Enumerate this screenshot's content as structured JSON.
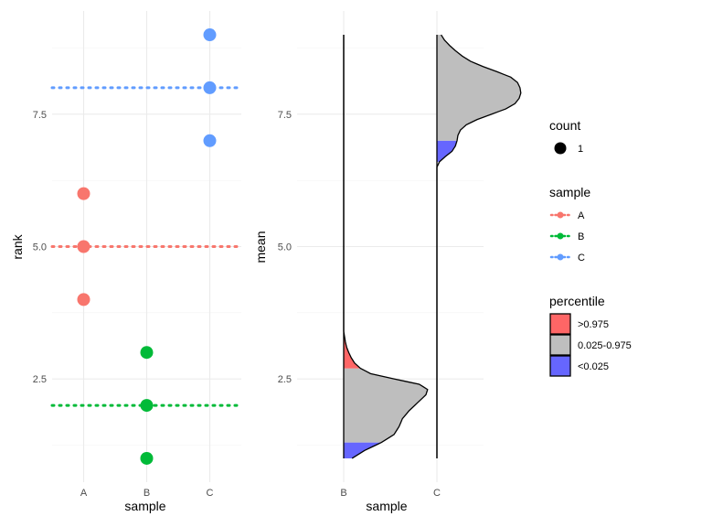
{
  "chart_data": [
    {
      "type": "scatter",
      "panel": "left",
      "xlabel": "sample",
      "ylabel": "rank",
      "categories": [
        "A",
        "B",
        "C"
      ],
      "ylim": [
        0.55,
        9.45
      ],
      "yticks": [
        2.5,
        5.0,
        7.5
      ],
      "ytick_labels": [
        "2.5",
        "5.0",
        "7.5"
      ],
      "points": [
        {
          "sample": "A",
          "rank": 4,
          "color": "#F8766D"
        },
        {
          "sample": "A",
          "rank": 5,
          "color": "#F8766D"
        },
        {
          "sample": "A",
          "rank": 6,
          "color": "#F8766D"
        },
        {
          "sample": "B",
          "rank": 1,
          "color": "#00BA38"
        },
        {
          "sample": "B",
          "rank": 2,
          "color": "#00BA38"
        },
        {
          "sample": "B",
          "rank": 3,
          "color": "#00BA38"
        },
        {
          "sample": "C",
          "rank": 7,
          "color": "#619CFF"
        },
        {
          "sample": "C",
          "rank": 8,
          "color": "#619CFF"
        },
        {
          "sample": "C",
          "rank": 9,
          "color": "#619CFF"
        }
      ],
      "hlines": [
        {
          "sample": "A",
          "rank": 5,
          "color": "#F8766D"
        },
        {
          "sample": "B",
          "rank": 2,
          "color": "#00BA38"
        },
        {
          "sample": "C",
          "rank": 8,
          "color": "#619CFF"
        }
      ]
    },
    {
      "type": "area",
      "subtype": "half-violin",
      "panel": "right",
      "xlabel": "sample",
      "ylabel": "mean",
      "categories": [
        "B",
        "C"
      ],
      "ylim": [
        0.55,
        9.45
      ],
      "yticks": [
        2.5,
        5.0,
        7.5
      ],
      "ytick_labels": [
        "2.5",
        "5.0",
        "7.5"
      ],
      "series": [
        {
          "name": "B",
          "y_range": [
            1.0,
            9.0
          ],
          "density": [
            [
              1.0,
              0.1
            ],
            [
              1.15,
              0.25
            ],
            [
              1.3,
              0.45
            ],
            [
              1.45,
              0.6
            ],
            [
              1.6,
              0.66
            ],
            [
              1.75,
              0.7
            ],
            [
              1.9,
              0.78
            ],
            [
              2.05,
              0.88
            ],
            [
              2.2,
              0.98
            ],
            [
              2.3,
              1.0
            ],
            [
              2.4,
              0.9
            ],
            [
              2.5,
              0.6
            ],
            [
              2.6,
              0.32
            ],
            [
              2.7,
              0.2
            ],
            [
              2.8,
              0.13
            ],
            [
              2.9,
              0.09
            ],
            [
              3.0,
              0.06
            ],
            [
              3.1,
              0.035
            ],
            [
              3.2,
              0.02
            ],
            [
              3.3,
              0.01
            ],
            [
              3.4,
              0.0
            ],
            [
              9.0,
              0.0
            ]
          ],
          "regions": [
            {
              "percentile": "<0.025",
              "from": 1.0,
              "to": 1.3
            },
            {
              "percentile": "0.025-0.975",
              "from": 1.3,
              "to": 2.7
            },
            {
              "percentile": ">0.975",
              "from": 2.7,
              "to": 3.4
            }
          ]
        },
        {
          "name": "C",
          "y_range": [
            1.0,
            9.0
          ],
          "density": [
            [
              1.0,
              0.0
            ],
            [
              6.5,
              0.0
            ],
            [
              6.6,
              0.03
            ],
            [
              6.7,
              0.1
            ],
            [
              6.8,
              0.18
            ],
            [
              6.9,
              0.22
            ],
            [
              7.0,
              0.24
            ],
            [
              7.1,
              0.25
            ],
            [
              7.2,
              0.28
            ],
            [
              7.3,
              0.35
            ],
            [
              7.4,
              0.48
            ],
            [
              7.5,
              0.65
            ],
            [
              7.6,
              0.82
            ],
            [
              7.7,
              0.93
            ],
            [
              7.8,
              0.98
            ],
            [
              7.9,
              1.0
            ],
            [
              8.0,
              0.99
            ],
            [
              8.1,
              0.96
            ],
            [
              8.2,
              0.88
            ],
            [
              8.3,
              0.72
            ],
            [
              8.4,
              0.55
            ],
            [
              8.5,
              0.4
            ],
            [
              8.6,
              0.3
            ],
            [
              8.7,
              0.22
            ],
            [
              8.8,
              0.15
            ],
            [
              8.9,
              0.09
            ],
            [
              9.0,
              0.05
            ]
          ],
          "regions": [
            {
              "percentile": "<0.025",
              "from": 6.6,
              "to": 7.0
            },
            {
              "percentile": "0.025-0.975",
              "from": 7.0,
              "to": 9.0
            }
          ]
        }
      ],
      "fill_colors": {
        ">0.975": "#FF6666",
        "0.025-0.975": "#BEBEBE",
        "<0.025": "#6666FF"
      }
    }
  ],
  "legend": {
    "count": {
      "title": "count",
      "items": [
        {
          "label": "1",
          "color": "#000000"
        }
      ]
    },
    "sample": {
      "title": "sample",
      "items": [
        {
          "label": "A",
          "color": "#F8766D"
        },
        {
          "label": "B",
          "color": "#00BA38"
        },
        {
          "label": "C",
          "color": "#619CFF"
        }
      ]
    },
    "percentile": {
      "title": "percentile",
      "items": [
        {
          "label": ">0.975",
          "color": "#FF6666"
        },
        {
          "label": "0.025-0.975",
          "color": "#BEBEBE"
        },
        {
          "label": "<0.025",
          "color": "#6666FF"
        }
      ]
    }
  }
}
